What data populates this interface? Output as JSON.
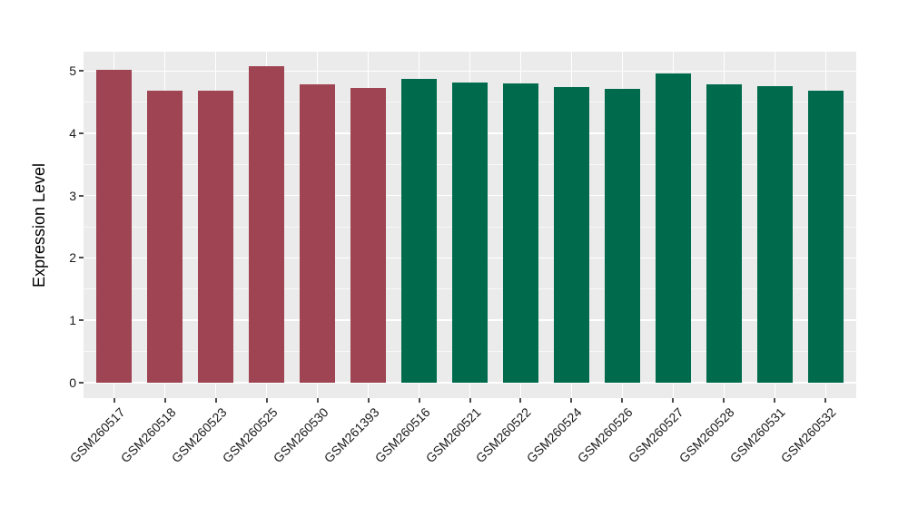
{
  "chart_data": {
    "type": "bar",
    "title": "",
    "xlabel": "",
    "ylabel": "Expression Level",
    "categories": [
      "GSM260517",
      "GSM260518",
      "GSM260523",
      "GSM260525",
      "GSM260530",
      "GSM261393",
      "GSM260516",
      "GSM260521",
      "GSM260522",
      "GSM260524",
      "GSM260526",
      "GSM260527",
      "GSM260528",
      "GSM260531",
      "GSM260532"
    ],
    "values": [
      5.02,
      4.68,
      4.69,
      5.07,
      4.79,
      4.73,
      4.88,
      4.81,
      4.8,
      4.74,
      4.72,
      4.96,
      4.79,
      4.76,
      4.69
    ],
    "bar_groups": [
      0,
      0,
      0,
      0,
      0,
      0,
      1,
      1,
      1,
      1,
      1,
      1,
      1,
      1,
      1
    ],
    "group_colors": [
      "#9E4452",
      "#006B4C"
    ],
    "ylim": [
      -0.25,
      5.31
    ],
    "yticks": [
      0,
      1,
      2,
      3,
      4,
      5
    ],
    "yticks_minor": [
      0.5,
      1.5,
      2.5,
      3.5,
      4.5
    ],
    "grid": "on",
    "legend": "none",
    "panel_bg": "#EBEBEB",
    "grid_major_color": "#FFFFFF",
    "grid_minor_color": "#FFFFFF",
    "axis_text_color": "#1A1A1A",
    "tick_mark_color": "#4D4D4D",
    "x_tick_rotation_deg": 45
  }
}
